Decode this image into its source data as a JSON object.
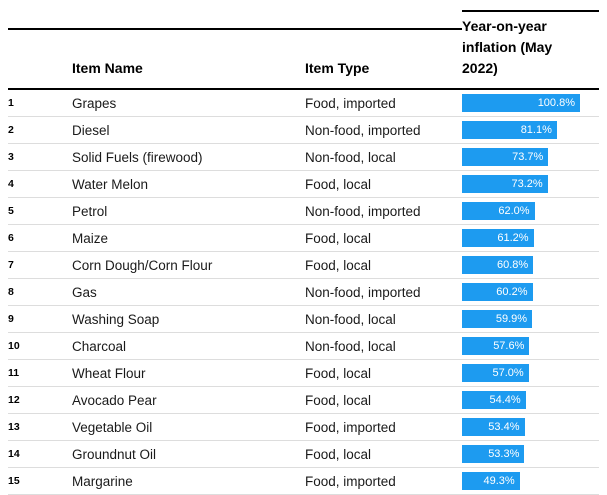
{
  "bar_color": "#1d9bf0",
  "table": {
    "headers": {
      "item_name": "Item Name",
      "item_type": "Item Type",
      "inflation": "Year-on-year inflation (May 2022)"
    }
  },
  "chart_data": {
    "type": "bar",
    "orientation": "horizontal",
    "title": "Year-on-year inflation (May 2022)",
    "xlabel": "Year-on-year inflation (May 2022)",
    "value_suffix": "%",
    "xlim": [
      0,
      100.8
    ],
    "grid": false,
    "legend": "none",
    "ranks": [
      "1",
      "2",
      "3",
      "4",
      "5",
      "6",
      "7",
      "8",
      "9",
      "10",
      "11",
      "12",
      "13",
      "14",
      "15"
    ],
    "categories": [
      "Grapes",
      "Diesel",
      "Solid Fuels (firewood)",
      "Water Melon",
      "Petrol",
      "Maize",
      "Corn Dough/Corn Flour",
      "Gas",
      "Washing Soap",
      "Charcoal",
      "Wheat Flour",
      "Avocado Pear",
      "Vegetable Oil",
      "Groundnut Oil",
      "Margarine"
    ],
    "item_types": [
      "Food, imported",
      "Non-food, imported",
      "Non-food, local",
      "Food, local",
      "Non-food, imported",
      "Food, local",
      "Food, local",
      "Non-food, imported",
      "Non-food, local",
      "Non-food, local",
      "Food, local",
      "Food, local",
      "Food, imported",
      "Food, local",
      "Food, imported"
    ],
    "values": [
      100.8,
      81.1,
      73.7,
      73.2,
      62.0,
      61.2,
      60.8,
      60.2,
      59.9,
      57.6,
      57.0,
      54.4,
      53.4,
      53.3,
      49.3
    ],
    "value_labels": [
      "100.8%",
      "81.1%",
      "73.7%",
      "73.2%",
      "62.0%",
      "61.2%",
      "60.8%",
      "60.2%",
      "59.9%",
      "57.6%",
      "57.0%",
      "54.4%",
      "53.4%",
      "53.3%",
      "49.3%"
    ]
  }
}
